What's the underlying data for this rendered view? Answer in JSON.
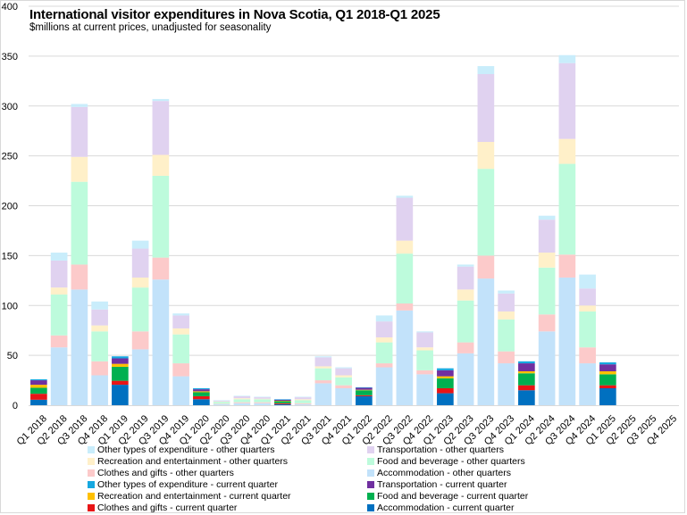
{
  "chart_data": {
    "type": "bar",
    "stacked": true,
    "title": "International visitor expenditures in Nova Scotia, Q1 2018-Q1 2025",
    "subtitle": "$millions at current prices, unadjusted for seasonality",
    "xlabel": "",
    "ylabel": "",
    "ylim": [
      0,
      400
    ],
    "yticks": [
      0,
      50,
      100,
      150,
      200,
      250,
      300,
      350,
      400
    ],
    "grid": true,
    "legend_position": "bottom",
    "categories": [
      "Q1 2018",
      "Q2 2018",
      "Q3 2018",
      "Q4 2018",
      "Q1 2019",
      "Q2 2019",
      "Q3 2019",
      "Q4 2019",
      "Q1 2020",
      "Q2 2020",
      "Q3 2020",
      "Q4 2020",
      "Q1 2021",
      "Q2 2021",
      "Q3 2021",
      "Q4 2021",
      "Q1 2022",
      "Q2 2022",
      "Q3 2022",
      "Q4 2022",
      "Q1 2023",
      "Q2 2023",
      "Q3 2023",
      "Q4 2023",
      "Q1 2024",
      "Q2 2024",
      "Q3 2024",
      "Q4 2024",
      "Q1 2025",
      "Q2 2025",
      "Q3 2025",
      "Q4 2025"
    ],
    "current_quarter_index": [
      0,
      4,
      8,
      12,
      16,
      20,
      24,
      28
    ],
    "components": [
      {
        "name": "Accommodation",
        "values": [
          5.5,
          58,
          116,
          30,
          20.5,
          56,
          126,
          29,
          6,
          1,
          2,
          2,
          1,
          1,
          22,
          17,
          9,
          38,
          95,
          31,
          12,
          52,
          127,
          42,
          15,
          74,
          128,
          42,
          17,
          null,
          null,
          null
        ]
      },
      {
        "name": "Clothes and gifts",
        "values": [
          6,
          12,
          25,
          14,
          4,
          18,
          22,
          13,
          3,
          0.5,
          1,
          1,
          1,
          1,
          3,
          3,
          1,
          4,
          7,
          4,
          5,
          11,
          23,
          12,
          5,
          17,
          23,
          16,
          3,
          null,
          null,
          null
        ]
      },
      {
        "name": "Food and beverage",
        "values": [
          6,
          41,
          83,
          30,
          14,
          44,
          82,
          29,
          4,
          2,
          3,
          3,
          2,
          3,
          12,
          8,
          5,
          21,
          50,
          20,
          10,
          42,
          87,
          32,
          12,
          47,
          91,
          36,
          11,
          null,
          null,
          null
        ]
      },
      {
        "name": "Recreation and entertainment",
        "values": [
          3,
          7,
          25,
          6,
          3,
          10,
          21,
          6,
          1,
          0.3,
          1,
          0.5,
          0.5,
          1,
          2,
          2,
          0.5,
          5,
          13,
          3,
          2,
          11,
          27,
          8,
          2,
          15,
          25,
          6,
          3,
          null,
          null,
          null
        ]
      },
      {
        "name": "Transportation",
        "values": [
          4.5,
          27,
          50,
          16,
          5.5,
          29,
          54,
          13,
          2,
          1,
          2,
          1.5,
          1,
          2,
          9,
          7,
          2,
          16,
          43,
          15,
          6,
          23,
          68,
          18,
          8,
          33,
          76,
          17,
          7,
          null,
          null,
          null
        ]
      },
      {
        "name": "Other types of expenditure",
        "values": [
          1,
          8,
          3,
          8,
          2,
          8,
          2,
          2,
          1,
          0.2,
          0.5,
          0.5,
          0.5,
          0.5,
          1,
          1,
          0.5,
          6,
          2,
          1,
          2,
          2,
          8,
          3,
          2,
          4,
          8,
          14,
          2,
          null,
          null,
          null
        ]
      }
    ],
    "colors": {
      "current": {
        "Accommodation": "#0070c0",
        "Clothes and gifts": "#e81416",
        "Food and beverage": "#00b050",
        "Recreation and entertainment": "#ffc000",
        "Transportation": "#7030a0",
        "Other types of expenditure": "#16a8e0"
      },
      "other": {
        "Accommodation": "#c2e2fa",
        "Clothes and gifts": "#fccaca",
        "Food and beverage": "#bdfbdc",
        "Recreation and entertainment": "#fff0c9",
        "Transportation": "#e0d2f0",
        "Other types of expenditure": "#c9edfb"
      }
    },
    "legend": [
      {
        "label": "Other types of expenditure - other quarters",
        "color": "#c9edfb"
      },
      {
        "label": "Transportation - other quarters",
        "color": "#e0d2f0"
      },
      {
        "label": "Recreation and entertainment - other quarters",
        "color": "#fff0c9"
      },
      {
        "label": "Food and beverage - other quarters",
        "color": "#bdfbdc"
      },
      {
        "label": "Clothes and gifts - other quarters",
        "color": "#fccaca"
      },
      {
        "label": "Accommodation - other quarters",
        "color": "#c2e2fa"
      },
      {
        "label": "Other types of expenditure - current quarter",
        "color": "#16a8e0"
      },
      {
        "label": "Transportation - current quarter",
        "color": "#7030a0"
      },
      {
        "label": "Recreation and entertainment - current quarter",
        "color": "#ffc000"
      },
      {
        "label": "Food and beverage - current quarter",
        "color": "#00b050"
      },
      {
        "label": "Clothes and gifts - current quarter",
        "color": "#e81416"
      },
      {
        "label": "Accommodation - current quarter",
        "color": "#0070c0"
      }
    ]
  }
}
